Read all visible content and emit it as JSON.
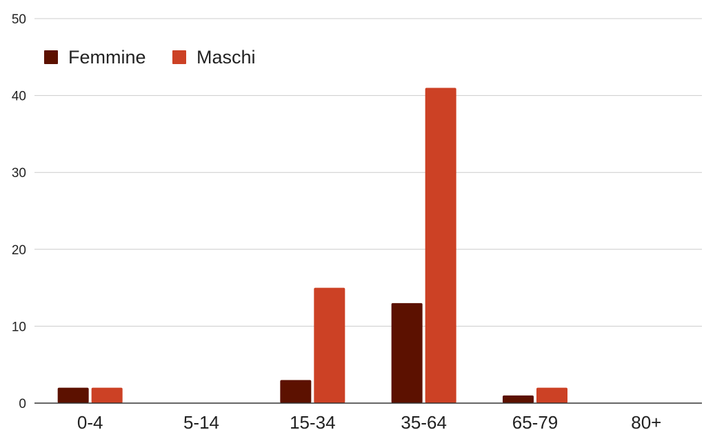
{
  "chart_data": {
    "type": "bar",
    "categories": [
      "0-4",
      "5-14",
      "15-34",
      "35-64",
      "65-79",
      "80+"
    ],
    "series": [
      {
        "name": "Femmine",
        "color": "#5c1100",
        "values": [
          2,
          0,
          3,
          13,
          1,
          0
        ]
      },
      {
        "name": "Maschi",
        "color": "#cc4125",
        "values": [
          2,
          0,
          15,
          41,
          2,
          0
        ]
      }
    ],
    "ylim": [
      0,
      50
    ],
    "yticks": [
      0,
      10,
      20,
      30,
      40,
      50
    ],
    "grid": true,
    "legend_position": "top-left",
    "gridline_color": "#cccccc",
    "axis_color": "#333333"
  }
}
